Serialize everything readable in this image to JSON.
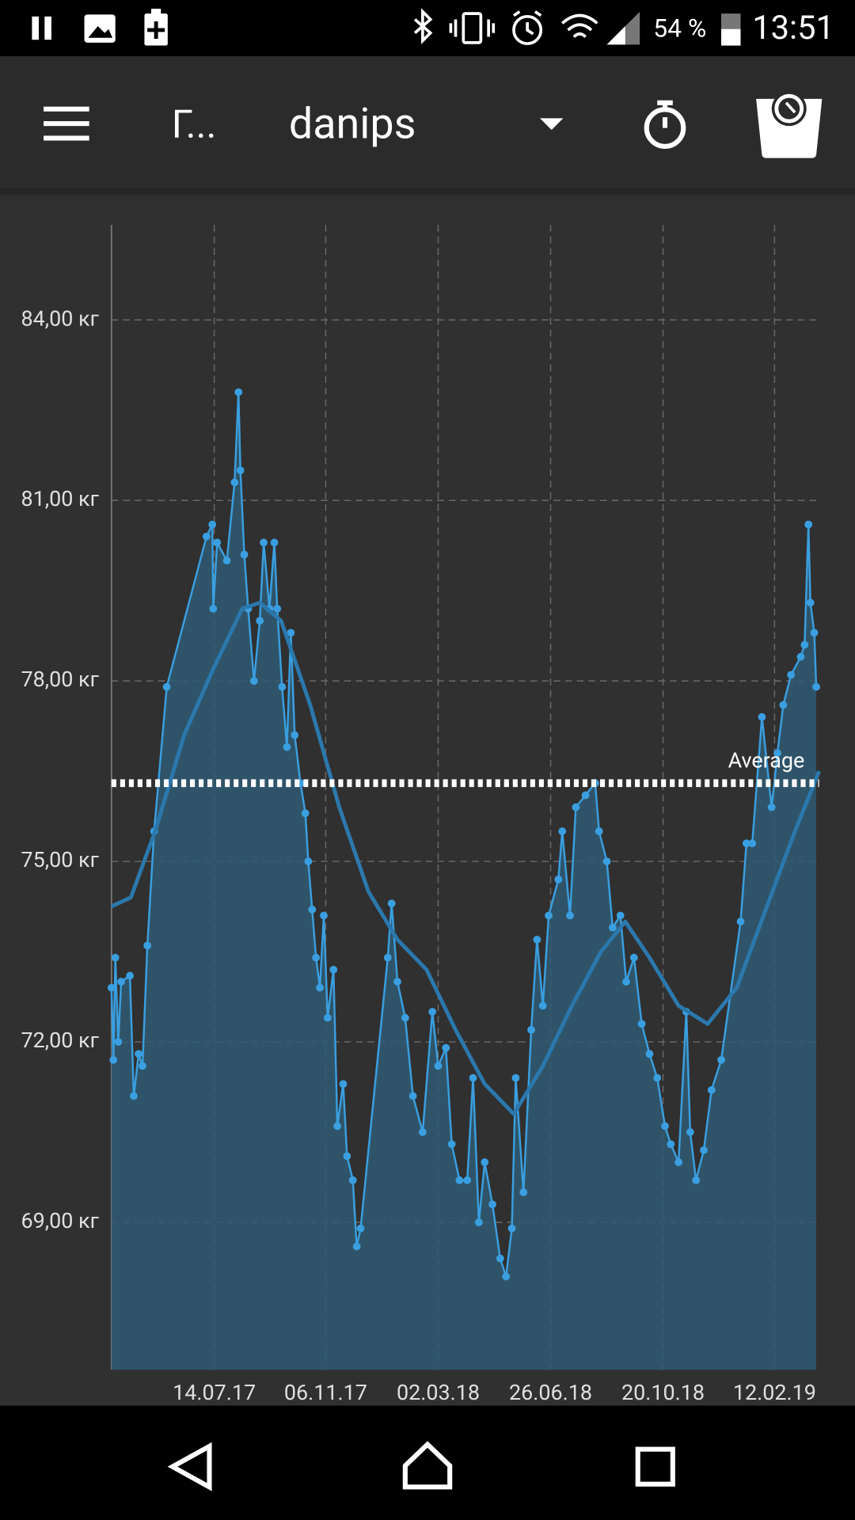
{
  "status_bar": {
    "battery": "54 %",
    "time": "13:51"
  },
  "toolbar": {
    "title": "Г...",
    "user": "danips"
  },
  "chart_data": {
    "type": "line",
    "x": [
      "2017-03-30",
      "2017-04-01",
      "2017-04-03",
      "2017-04-06",
      "2017-04-09",
      "2017-04-18",
      "2017-04-22",
      "2017-04-27",
      "2017-05-01",
      "2017-05-06",
      "2017-05-13",
      "2017-05-26",
      "2017-07-06",
      "2017-07-12",
      "2017-07-13",
      "2017-07-17",
      "2017-07-27",
      "2017-08-04",
      "2017-08-08",
      "2017-08-10",
      "2017-08-14",
      "2017-08-18",
      "2017-08-24",
      "2017-08-30",
      "2017-09-03",
      "2017-09-09",
      "2017-09-14",
      "2017-09-17",
      "2017-09-22",
      "2017-09-27",
      "2017-10-01",
      "2017-10-05",
      "2017-10-11",
      "2017-10-16",
      "2017-10-19",
      "2017-10-23",
      "2017-10-27",
      "2017-10-31",
      "2017-11-04",
      "2017-11-08",
      "2017-11-14",
      "2017-11-18",
      "2017-11-24",
      "2017-11-28",
      "2017-12-04",
      "2017-12-08",
      "2017-12-12",
      "2018-01-09",
      "2018-01-13",
      "2018-01-19",
      "2018-01-27",
      "2018-02-04",
      "2018-02-14",
      "2018-02-24",
      "2018-03-02",
      "2018-03-10",
      "2018-03-16",
      "2018-03-24",
      "2018-04-01",
      "2018-04-07",
      "2018-04-13",
      "2018-04-19",
      "2018-04-27",
      "2018-05-05",
      "2018-05-11",
      "2018-05-17",
      "2018-05-21",
      "2018-05-29",
      "2018-06-06",
      "2018-06-12",
      "2018-06-18",
      "2018-06-24",
      "2018-07-04",
      "2018-07-08",
      "2018-07-16",
      "2018-07-22",
      "2018-08-01",
      "2018-08-11",
      "2018-08-15",
      "2018-08-23",
      "2018-08-29",
      "2018-09-06",
      "2018-09-12",
      "2018-09-20",
      "2018-09-28",
      "2018-10-06",
      "2018-10-14",
      "2018-10-22",
      "2018-10-28",
      "2018-11-05",
      "2018-11-13",
      "2018-11-17",
      "2018-11-23",
      "2018-12-01",
      "2018-12-09",
      "2018-12-19",
      "2019-01-08",
      "2019-01-14",
      "2019-01-20",
      "2019-01-30",
      "2019-02-09",
      "2019-02-15",
      "2019-02-21",
      "2019-03-01",
      "2019-03-11",
      "2019-03-15",
      "2019-03-19",
      "2019-03-21",
      "2019-03-25",
      "2019-03-27"
    ],
    "series": [
      {
        "color": "#3a9fe0",
        "fill": "#2f5a73",
        "markers": true,
        "values": [
          72.9,
          71.7,
          73.4,
          72.0,
          73.0,
          73.1,
          71.1,
          71.8,
          71.6,
          73.6,
          75.5,
          77.9,
          80.4,
          80.6,
          79.2,
          80.3,
          80.0,
          81.3,
          82.8,
          81.5,
          80.1,
          79.2,
          78.0,
          79.0,
          80.3,
          79.2,
          80.3,
          79.2,
          77.9,
          76.9,
          78.8,
          77.1,
          76.3,
          75.8,
          75.0,
          74.2,
          73.4,
          72.9,
          74.1,
          72.4,
          73.2,
          70.6,
          71.3,
          70.1,
          69.7,
          68.6,
          68.9,
          73.4,
          74.3,
          73.0,
          72.4,
          71.1,
          70.5,
          72.5,
          71.6,
          71.9,
          70.3,
          69.7,
          69.7,
          71.4,
          69.0,
          70.0,
          69.3,
          68.4,
          68.1,
          68.9,
          71.4,
          69.5,
          72.2,
          73.7,
          72.6,
          74.1,
          74.7,
          75.5,
          74.1,
          75.9,
          76.1,
          76.3,
          75.5,
          75.0,
          73.9,
          74.1,
          73.0,
          73.4,
          72.3,
          71.8,
          71.4,
          70.6,
          70.3,
          70.0,
          72.5,
          70.5,
          69.7,
          70.2,
          71.2,
          71.7,
          74.0,
          75.3,
          75.3,
          77.4,
          75.9,
          76.8,
          77.6,
          78.1,
          78.4,
          78.6,
          80.6,
          79.3,
          78.8,
          77.9
        ]
      },
      {
        "color": "#2b78ad",
        "markers": false,
        "x": [
          "2017-03-30",
          "2017-04-19",
          "2017-05-14",
          "2017-06-13",
          "2017-07-13",
          "2017-08-12",
          "2017-08-30",
          "2017-09-21",
          "2017-10-21",
          "2017-11-20",
          "2017-12-20",
          "2018-01-19",
          "2018-02-18",
          "2018-03-20",
          "2018-04-19",
          "2018-05-19",
          "2018-06-18",
          "2018-07-18",
          "2018-08-17",
          "2018-09-11",
          "2018-10-06",
          "2018-11-05",
          "2018-12-05",
          "2019-01-04",
          "2019-02-03",
          "2019-03-05",
          "2019-03-30"
        ],
        "values": [
          74.25,
          74.4,
          75.5,
          77.1,
          78.2,
          79.2,
          79.3,
          79.0,
          77.6,
          75.9,
          74.5,
          73.7,
          73.2,
          72.2,
          71.3,
          70.8,
          71.6,
          72.6,
          73.5,
          74.0,
          73.4,
          72.6,
          72.3,
          72.9,
          74.2,
          75.5,
          76.5
        ]
      }
    ],
    "average": {
      "label": "Average",
      "value": 76.3,
      "color": "#ffffff"
    },
    "xlim": [
      "2017-03-30",
      "2019-03-30"
    ],
    "ylim": [
      66.55,
      85.58
    ],
    "xticks": [
      {
        "value": "2017-07-14",
        "label": "14.07.17"
      },
      {
        "value": "2017-11-06",
        "label": "06.11.17"
      },
      {
        "value": "2018-03-02",
        "label": "02.03.18"
      },
      {
        "value": "2018-06-26",
        "label": "26.06.18"
      },
      {
        "value": "2018-10-20",
        "label": "20.10.18"
      },
      {
        "value": "2019-02-12",
        "label": "12.02.19"
      }
    ],
    "yticks": [
      {
        "value": 69,
        "label": "69,00 кг"
      },
      {
        "value": 72,
        "label": "72,00 кг"
      },
      {
        "value": 75,
        "label": "75,00 кг"
      },
      {
        "value": 78,
        "label": "78,00 кг"
      },
      {
        "value": 81,
        "label": "81,00 кг"
      },
      {
        "value": 84,
        "label": "84,00 кг"
      }
    ],
    "grid": true
  }
}
